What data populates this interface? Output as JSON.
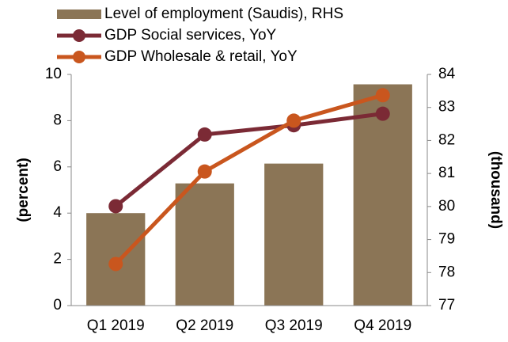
{
  "chart_data": {
    "type": "combo",
    "categories": [
      "Q1 2019",
      "Q2 2019",
      "Q3 2019",
      "Q4 2019"
    ],
    "y_label": "(percent)",
    "y2_label": "(thousand)",
    "ylim": [
      0,
      10
    ],
    "yticks": [
      0,
      2,
      4,
      6,
      8,
      10
    ],
    "y2lim": [
      77,
      84
    ],
    "y2ticks": [
      77,
      78,
      79,
      80,
      81,
      82,
      83,
      84
    ],
    "series": [
      {
        "name": "Level of employment (Saudis), RHS",
        "type": "bar",
        "axis": "y2",
        "color": "#8b7556",
        "values": [
          79.8,
          80.7,
          81.3,
          83.7
        ]
      },
      {
        "name": "GDP Social services, YoY",
        "type": "line",
        "color": "#7b2a35",
        "values": [
          4.3,
          7.4,
          7.8,
          8.3
        ]
      },
      {
        "name": "GDP Wholesale & retail, YoY",
        "type": "line",
        "color": "#c9561e",
        "values": [
          1.8,
          5.8,
          8.0,
          9.1
        ]
      }
    ]
  }
}
